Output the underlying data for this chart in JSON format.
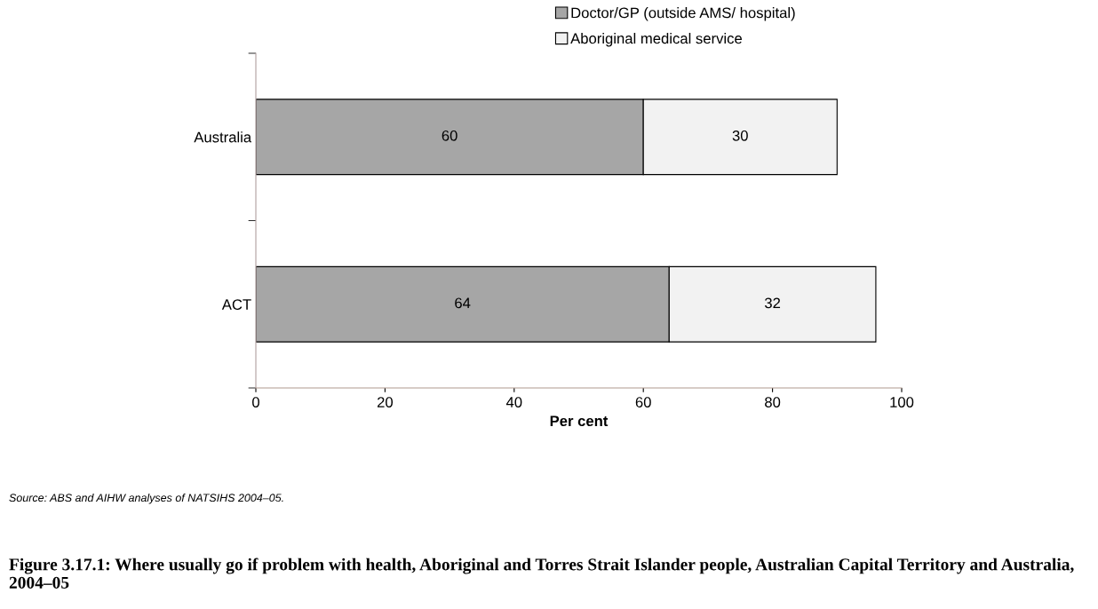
{
  "chart_data": {
    "type": "bar",
    "orientation": "horizontal",
    "stacked": true,
    "title": "Figure 3.17.1: Where usually go if problem with health, Aboriginal and Torres Strait Islander people, Australian Capital Territory and Australia, 2004–05",
    "xlabel": "Per cent",
    "categories": [
      "Australia",
      "ACT"
    ],
    "series": [
      {
        "name": "Doctor/GP (outside AMS/ hospital)",
        "color": "#a6a6a6",
        "values": [
          60,
          64
        ]
      },
      {
        "name": "Aboriginal medical service",
        "color": "#f2f2f2",
        "values": [
          30,
          32
        ]
      }
    ],
    "xlim": [
      0,
      100
    ],
    "xticks": [
      0,
      20,
      40,
      60,
      80,
      100
    ],
    "data_labels": true,
    "grid": false,
    "legend": "top right",
    "annotations": [
      "Source: ABS and AIHW analyses of NATSIHS 2004–05."
    ]
  }
}
